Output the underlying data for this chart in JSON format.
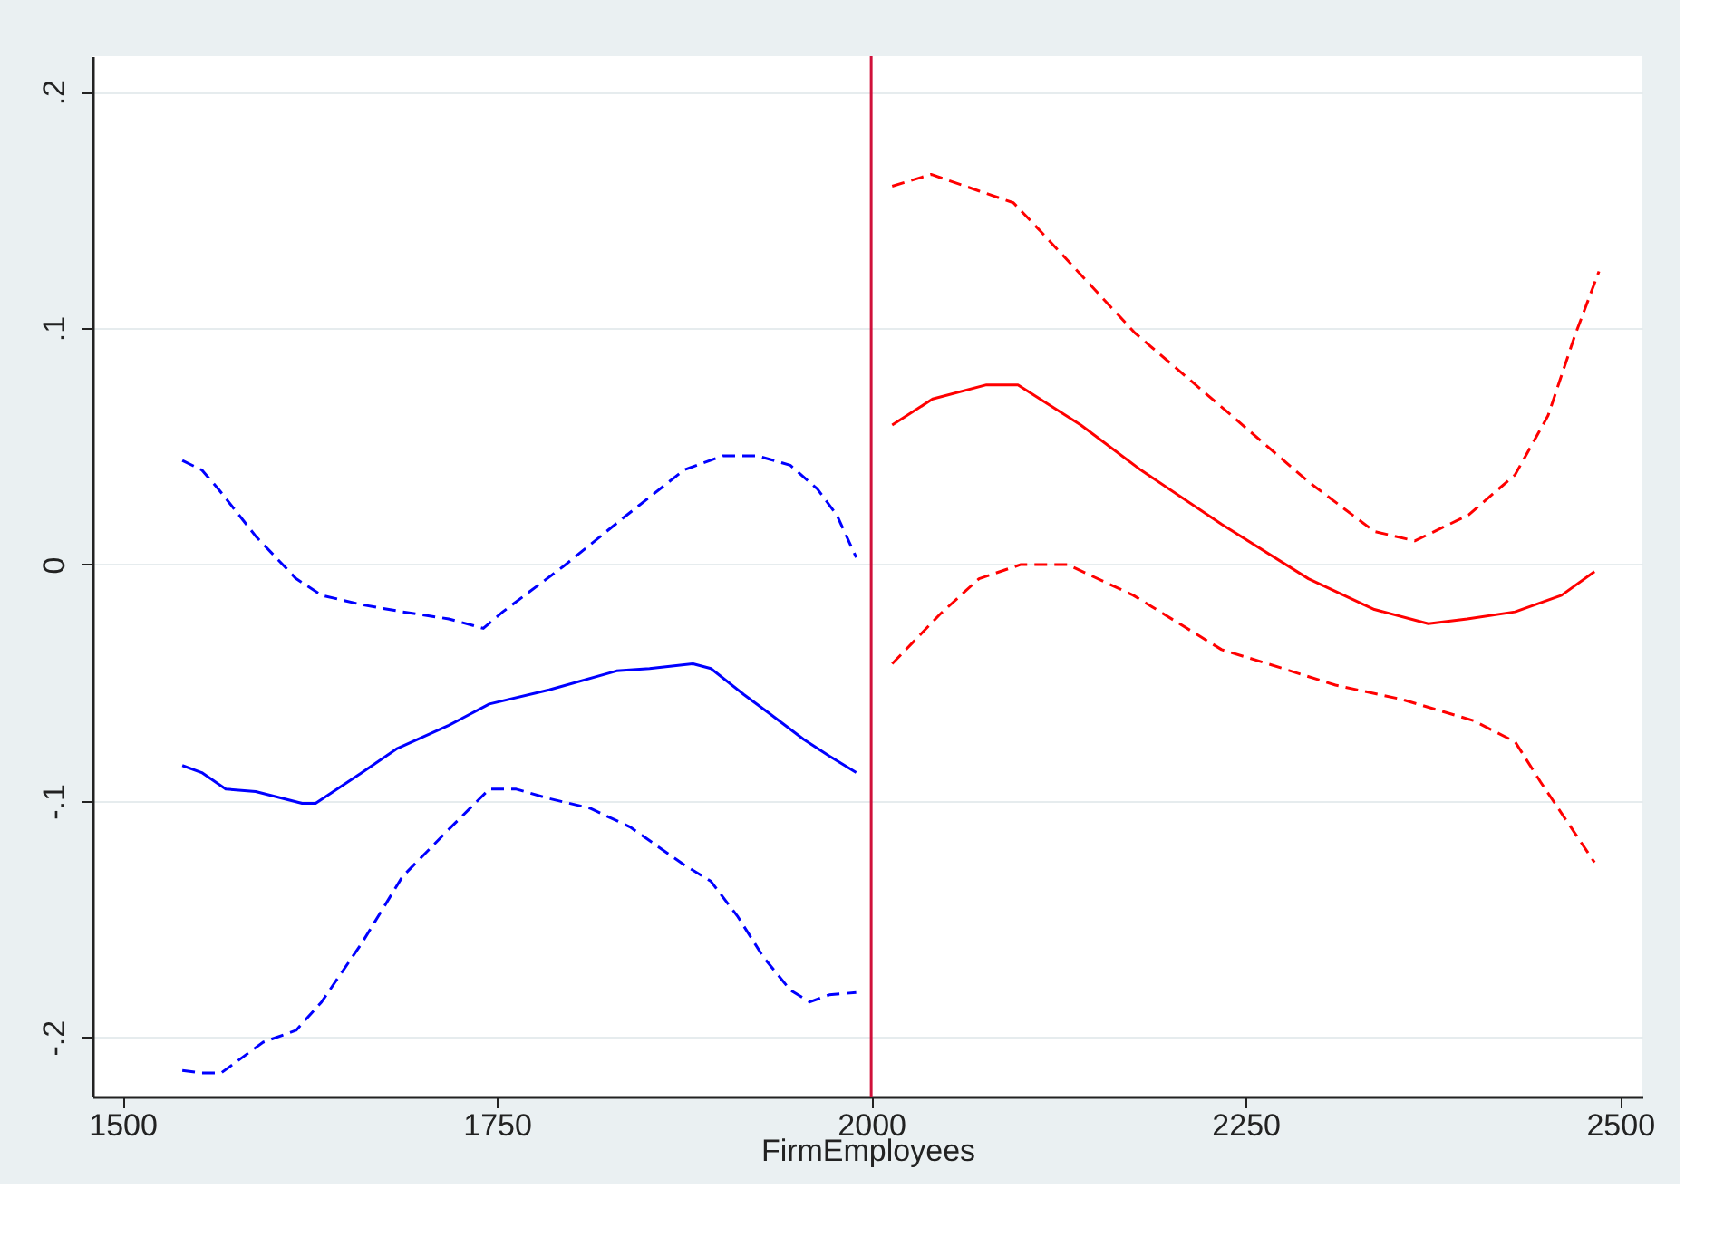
{
  "chart_data": {
    "type": "line",
    "xlabel": "FirmEmployees",
    "xlim": [
      1480,
      2515
    ],
    "ylim": [
      -0.225,
      0.215
    ],
    "xticks": [
      1500,
      1750,
      2000,
      2250,
      2500
    ],
    "yticks": [
      {
        "value": -0.2,
        "label": "-.2"
      },
      {
        "value": -0.1,
        "label": "-.1"
      },
      {
        "value": 0,
        "label": "0"
      },
      {
        "value": 0.1,
        "label": ".1"
      },
      {
        "value": 0.2,
        "label": ".2"
      }
    ],
    "grid": "y",
    "marker": "none",
    "series": [
      {
        "color": "#0000ff",
        "line_style": "solid",
        "x": [
          1540,
          1553,
          1569,
          1589,
          1620,
          1629,
          1660,
          1683,
          1718,
          1745,
          1785,
          1830,
          1852,
          1881,
          1893,
          1915,
          1932,
          1955,
          1972,
          1990
        ],
        "values": [
          -0.085,
          -0.088,
          -0.095,
          -0.096,
          -0.101,
          -0.101,
          -0.088,
          -0.078,
          -0.068,
          -0.059,
          -0.053,
          -0.045,
          -0.044,
          -0.042,
          -0.044,
          -0.055,
          -0.063,
          -0.074,
          -0.081,
          -0.088
        ]
      },
      {
        "color": "#0000ff",
        "line_style": "dashed",
        "x": [
          1540,
          1553,
          1564,
          1589,
          1616,
          1633,
          1660,
          1687,
          1718,
          1741,
          1754,
          1794,
          1835,
          1875,
          1901,
          1924,
          1946,
          1964,
          1977,
          1990
        ],
        "values": [
          0.044,
          0.04,
          0.032,
          0.012,
          -0.006,
          -0.013,
          -0.017,
          -0.02,
          -0.023,
          -0.027,
          -0.02,
          -0.001,
          0.02,
          0.04,
          0.046,
          0.046,
          0.042,
          0.032,
          0.021,
          0.003
        ]
      },
      {
        "color": "#0000ff",
        "line_style": "dashed",
        "x": [
          1540,
          1553,
          1566,
          1594,
          1616,
          1633,
          1660,
          1687,
          1718,
          1745,
          1763,
          1785,
          1812,
          1839,
          1875,
          1893,
          1911,
          1928,
          1946,
          1959,
          1972,
          1990
        ],
        "values": [
          -0.214,
          -0.215,
          -0.215,
          -0.202,
          -0.197,
          -0.185,
          -0.16,
          -0.132,
          -0.112,
          -0.095,
          -0.095,
          -0.099,
          -0.103,
          -0.111,
          -0.127,
          -0.134,
          -0.149,
          -0.166,
          -0.18,
          -0.185,
          -0.182,
          -0.181
        ]
      },
      {
        "color": "#ff0000",
        "line_style": "solid",
        "x": [
          2014,
          2041,
          2077,
          2098,
          2140,
          2180,
          2234,
          2292,
          2336,
          2372,
          2398,
          2430,
          2461,
          2483
        ],
        "values": [
          0.059,
          0.07,
          0.076,
          0.076,
          0.059,
          0.04,
          0.017,
          -0.006,
          -0.019,
          -0.025,
          -0.023,
          -0.02,
          -0.013,
          -0.003
        ]
      },
      {
        "color": "#ff0000",
        "line_style": "dashed",
        "x": [
          2014,
          2040,
          2072,
          2095,
          2113,
          2176,
          2237,
          2292,
          2336,
          2363,
          2399,
          2430,
          2452,
          2470,
          2486
        ],
        "values": [
          0.16,
          0.165,
          0.158,
          0.153,
          0.141,
          0.098,
          0.065,
          0.035,
          0.014,
          0.01,
          0.021,
          0.038,
          0.063,
          0.097,
          0.124
        ]
      },
      {
        "color": "#ff0000",
        "line_style": "dashed",
        "x": [
          2014,
          2046,
          2072,
          2100,
          2131,
          2175,
          2234,
          2265,
          2310,
          2354,
          2402,
          2430,
          2447,
          2465,
          2483
        ],
        "values": [
          -0.042,
          -0.021,
          -0.006,
          0.0,
          0.0,
          -0.013,
          -0.036,
          -0.042,
          -0.051,
          -0.057,
          -0.066,
          -0.075,
          -0.092,
          -0.109,
          -0.126
        ]
      }
    ],
    "ref_lines": [
      {
        "axis": "x",
        "value": 2000,
        "color": "#d0103a",
        "line_style": "solid"
      }
    ]
  }
}
